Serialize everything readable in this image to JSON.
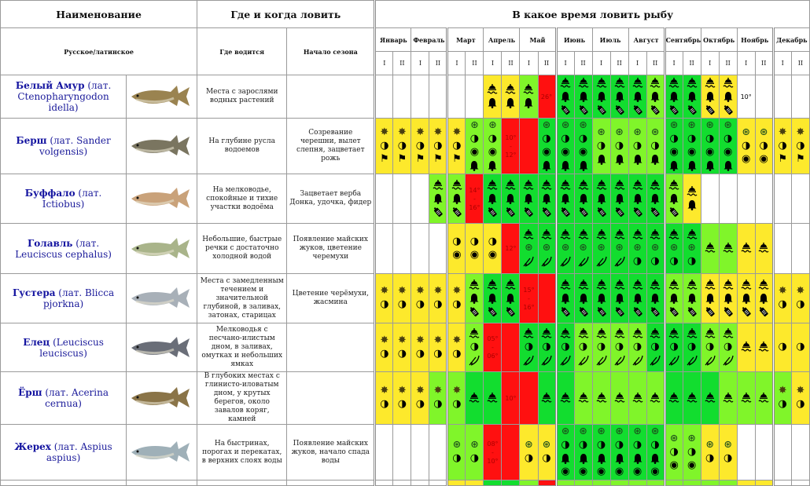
{
  "header": {
    "name": "Наименование",
    "where_when": "Где и когда ловить",
    "when_title": "В какое время ловить рыбу",
    "ru_lat": "Русское/латинское",
    "habitat": "Где водится",
    "season": "Начало сезона"
  },
  "months": [
    "Январь",
    "Февраль",
    "Март",
    "Апрель",
    "Май",
    "Июнь",
    "Июль",
    "Август",
    "Сентябрь",
    "Октябрь",
    "Ноябрь",
    "Декабрь"
  ],
  "halves": [
    "I",
    "II"
  ],
  "colors": {
    "Y": "#fde92c",
    "G": "#12dd2f",
    "L": "#80f52a",
    "R": "#ff1010",
    "W": "#ffffff",
    "name_blue": "#1414a0"
  },
  "icon_legend": {
    "f": "float-icon",
    "b": "bell-icon",
    "k": "feeder-icon",
    "s": "jig-snowflake-icon",
    "h": "half-moon-icon",
    "t": "spinner-target-icon",
    "F": "flag-icon",
    "r": "reel-icon",
    "p": "fly-rod-icon"
  },
  "fish": [
    {
      "ru": "Белый Амур",
      "lat": " (лат. Ctenopharyngodon idella)",
      "habitat": "Места с зарослями водных растений",
      "season": "",
      "body": "#9a8350",
      "cells": [
        "W",
        "W",
        "W",
        "W",
        "W",
        "W",
        "Y:fb",
        "Y:fb",
        "L:fb",
        "R:26°",
        "G:fbk",
        "G:fbk",
        "G:fbk",
        "G:fbk",
        "G:fbk",
        "L:fbk",
        "G:fbk",
        "G:fbk",
        "Y:fbk",
        "Y:fbk",
        "W:10°",
        "W",
        "W",
        "W"
      ]
    },
    {
      "ru": "Берш",
      "lat": " (лат. Sander volgensis)",
      "habitat": "На глубине русла водоемов",
      "season": "Созревание черешни, вылет слепня, зацветает рожь",
      "body": "#7a7560",
      "cells": [
        "Y:shF",
        "Y:shF",
        "Y:shF",
        "Y:shF",
        "Y:shF",
        "L:rhtb",
        "L:rhtb",
        "R:10°|-|12°",
        "R",
        "G:rhtb",
        "G:rhtb",
        "G:rhtb",
        "L:rhb",
        "L:rhb",
        "L:rhb",
        "L:rhb",
        "G:rhtb",
        "G:rhtb",
        "G:rhtb",
        "G:rhtb",
        "Y:rht",
        "Y:rht",
        "Y:shF",
        "Y:shF"
      ]
    },
    {
      "ru": "Буффало",
      "lat": " (лат. Ictiobus)",
      "habitat": "На мелководье, спокойные и тихие участки водоёма",
      "season": "Зацветает верба Донка, удочка, фидер",
      "body": "#c9a27a",
      "cells": [
        "W",
        "W",
        "W",
        "L:fbk",
        "L:fbk",
        "R:14°|-|16°",
        "G:fbk",
        "G:fbk",
        "G:fbk",
        "G:fbk",
        "G:fbk",
        "G:fbk",
        "G:fbk",
        "G:fbk",
        "G:fbk",
        "G:fbk",
        "L:fbk",
        "Y:fb",
        "W",
        "W",
        "W",
        "W",
        "W",
        "W"
      ]
    },
    {
      "ru": "Голавль",
      "lat": " (лат. Leuciscus cephalus)",
      "habitat": "Небольшие, быстрые речки с достаточно холодной водой",
      "season": "Появление майских жуков, цветение черемухи",
      "body": "#a9b48a",
      "cells": [
        "W",
        "W",
        "W",
        "W",
        "Y:ht",
        "Y:ht",
        "Y:ht",
        "R:12°",
        "G:frp",
        "G:frp",
        "G:frp",
        "G:frp",
        "G:frp",
        "G:frp",
        "G:frh",
        "G:frh",
        "G:frh",
        "G:frh",
        "L:f",
        "L:f",
        "Y:f",
        "Y:f",
        "W",
        "W"
      ]
    },
    {
      "ru": "Густера",
      "lat": " (лат. Blicca pjorkna)",
      "habitat": "Места с замедленным течением и значительной глубиной, в заливах, затонах, старицах",
      "season": "Цветение черёмухи, жасмина",
      "body": "#a8b0b8",
      "cells": [
        "Y:sh",
        "Y:sh",
        "Y:sh",
        "Y:sh",
        "Y:sh",
        "L:fbk",
        "G:fbk",
        "G:fbk",
        "R:15°|-|16°",
        "R",
        "G:fbk",
        "G:fbk",
        "G:fbk",
        "G:fbk",
        "G:fbk",
        "G:fbk",
        "L:fbk",
        "L:fbk",
        "Y:fbk",
        "Y:fbk",
        "Y:fbk",
        "Y:fbk",
        "Y:sh",
        "Y:sh"
      ]
    },
    {
      "ru": "Елец",
      "lat": " (Leuciscus leuciscus)",
      "habitat": "Мелководья с песчано-илистым дном, в заливах, омутках и небольших ямках",
      "season": "",
      "body": "#6a6e78",
      "cells": [
        "Y:sh",
        "Y:sh",
        "Y:sh",
        "Y:sh",
        "Y:sh",
        "L:fhp",
        "R:05°|-|06°",
        "R",
        "G:fhp",
        "G:fhp",
        "G:fhp",
        "L:fhp",
        "L:fhp",
        "L:fhp",
        "L:fhp",
        "G:fhp",
        "G:fhp",
        "G:fhp",
        "L:fhp",
        "L:fhp",
        "Y:f",
        "Y:f",
        "Y:h",
        "Y:h"
      ]
    },
    {
      "ru": "Ёрш",
      "lat": " (лат. Acerina cernua)",
      "habitat": "В глубоких местах с глинисто-иловатым дном, у крутых берегов, около завалов коряг, камней",
      "season": "",
      "body": "#8a7448",
      "cells": [
        "Y:sh",
        "Y:sh",
        "Y:sh",
        "L:sh",
        "L:sh",
        "G:f",
        "G:f",
        "R:10°",
        "R",
        "G:f",
        "G:f",
        "L:f",
        "L:f",
        "L:f",
        "L:f",
        "L:f",
        "G:f",
        "G:f",
        "G:f",
        "L:f",
        "L:f",
        "L:f",
        "L:sh",
        "Y:sh"
      ]
    },
    {
      "ru": "Жерех",
      "lat": " (лат. Aspius aspius)",
      "habitat": "На быстринах, порогах и перекатах, в верхних слоях воды",
      "season": "Появление майских жуков, начало спада воды",
      "body": "#9fb0b8",
      "cells": [
        "W",
        "W",
        "W",
        "W",
        "L:rh",
        "L:rh",
        "R:08°|-|10°",
        "R",
        "Y:rh",
        "Y:rh",
        "G:rhbt",
        "G:rhbt",
        "G:rhbt",
        "G:rhbt",
        "G:rhbt",
        "G:rhbt",
        "L:rht",
        "L:rht",
        "Y:rh",
        "Y:rh",
        "W",
        "W",
        "W",
        "W"
      ]
    }
  ],
  "partial_row": [
    "W",
    "W",
    "W",
    "W",
    "Y",
    "Y",
    "G",
    "G",
    "L",
    "R",
    "L",
    "L",
    "L",
    "L",
    "L",
    "L",
    "L",
    "L",
    "L",
    "L",
    "Y",
    "Y",
    "W",
    "W"
  ]
}
